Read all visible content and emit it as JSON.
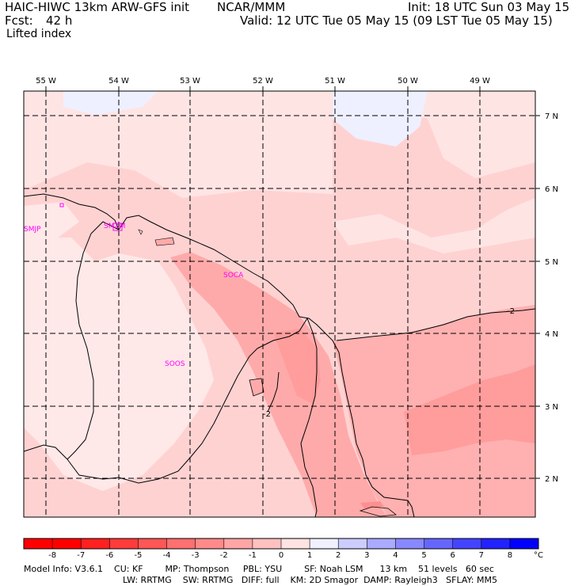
{
  "header": {
    "model": "HAIC-HIWC 13km ARW-GFS init",
    "org": "NCAR/MMM",
    "init": "Init: 18 UTC Sun 03 May 15",
    "fcst_label": "Fcst:",
    "fcst_value": "42 h",
    "valid": "Valid: 12 UTC Tue 05 May 15 (09 LST Tue 05 May 15)",
    "field": "Lifted index"
  },
  "axes": {
    "lon_labels": [
      "55 W",
      "54 W",
      "53 W",
      "52 W",
      "51 W",
      "50 W",
      "49 W"
    ],
    "lat_labels": [
      "7 N",
      "6 N",
      "5 N",
      "4 N",
      "3 N",
      "2 N"
    ]
  },
  "stations": [
    "SMJP",
    "SMZM",
    "SOCA",
    "SOOS"
  ],
  "contour_labels": [
    "-2",
    "-2"
  ],
  "colorbar": {
    "ticks": [
      "-8",
      "-7",
      "-6",
      "-5",
      "-4",
      "-3",
      "-2",
      "-1",
      "0",
      "1",
      "2",
      "3",
      "4",
      "5",
      "6",
      "7",
      "8"
    ],
    "unit": "°C",
    "colors": [
      "#ff0000",
      "#ff2020",
      "#ff3b3b",
      "#ff5656",
      "#ff7070",
      "#ff8a8a",
      "#ffa5a5",
      "#ffc0c0",
      "#ffe2e2",
      "#f0f0ff",
      "#ccccff",
      "#aaaaff",
      "#8888ff",
      "#6666ff",
      "#4444ff",
      "#2222ff",
      "#0000ff"
    ]
  },
  "footer": {
    "line1": "Model Info: V3.6.1    CU: KF        MP: Thompson     PBL: YSU        SF: Noah LSM      13 km    51 levels   60 sec",
    "line2": "LW: RRTMG    SW: RRTMG   DIFF: full    KM: 2D Smagor  DAMP: Rayleigh3   SFLAY: MM5"
  }
}
